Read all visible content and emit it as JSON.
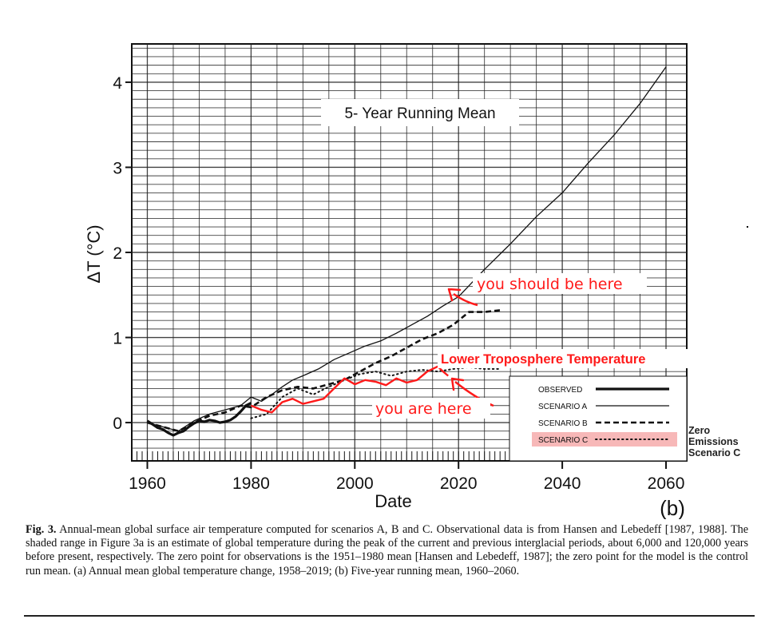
{
  "chart_data": {
    "type": "line",
    "title": "5- Year Running Mean",
    "panel_label": "(b)",
    "xlabel": "Date",
    "ylabel": "ΔT (°C)",
    "xlim": [
      1957,
      2064
    ],
    "ylim": [
      -0.45,
      4.45
    ],
    "x_ticks": [
      1960,
      1980,
      2000,
      2020,
      2040,
      2060
    ],
    "y_ticks": [
      0,
      1,
      2,
      3,
      4
    ],
    "grid": true,
    "legend_position": "lower-right",
    "series": [
      {
        "name": "OBSERVED",
        "style": "thick-solid",
        "x": [
          1960,
          1961,
          1962,
          1963,
          1964,
          1965,
          1966,
          1967,
          1968,
          1969,
          1970,
          1971,
          1972,
          1973,
          1974,
          1975,
          1976,
          1977,
          1978,
          1979,
          1980
        ],
        "y": [
          0.02,
          -0.02,
          -0.06,
          -0.08,
          -0.12,
          -0.15,
          -0.12,
          -0.1,
          -0.05,
          -0.01,
          0.02,
          0.01,
          0.03,
          0.02,
          0.0,
          0.01,
          0.03,
          0.07,
          0.13,
          0.2,
          0.23
        ]
      },
      {
        "name": "SCENARIO A",
        "style": "thin-solid",
        "x": [
          1960,
          1963,
          1966,
          1969,
          1972,
          1975,
          1978,
          1980,
          1982,
          1984,
          1986,
          1988,
          1990,
          1993,
          1996,
          1999,
          2002,
          2005,
          2008,
          2011,
          2014,
          2017,
          2020,
          2025,
          2030,
          2035,
          2040,
          2045,
          2050,
          2055,
          2060
        ],
        "y": [
          0.0,
          -0.05,
          -0.1,
          0.02,
          0.1,
          0.15,
          0.2,
          0.3,
          0.25,
          0.33,
          0.42,
          0.5,
          0.55,
          0.63,
          0.74,
          0.82,
          0.9,
          0.96,
          1.05,
          1.15,
          1.25,
          1.37,
          1.48,
          1.8,
          2.1,
          2.42,
          2.7,
          3.05,
          3.38,
          3.75,
          4.18
        ]
      },
      {
        "name": "SCENARIO B",
        "style": "dashed",
        "x": [
          1960,
          1963,
          1966,
          1969,
          1972,
          1975,
          1978,
          1980,
          1983,
          1986,
          1989,
          1992,
          1995,
          1998,
          2001,
          2004,
          2007,
          2010,
          2013,
          2016,
          2019,
          2022,
          2025,
          2028
        ],
        "y": [
          0.0,
          -0.05,
          -0.1,
          0.0,
          0.08,
          0.12,
          0.2,
          0.18,
          0.3,
          0.38,
          0.42,
          0.4,
          0.45,
          0.5,
          0.6,
          0.7,
          0.78,
          0.88,
          0.98,
          1.05,
          1.15,
          1.3,
          1.3,
          1.32
        ]
      },
      {
        "name": "SCENARIO C",
        "style": "dotted",
        "x": [
          1980,
          1983,
          1986,
          1989,
          1992,
          1995,
          1998,
          2001,
          2004,
          2007,
          2010,
          2013,
          2016,
          2019,
          2022,
          2025,
          2028
        ],
        "y": [
          0.05,
          0.1,
          0.3,
          0.4,
          0.33,
          0.42,
          0.5,
          0.57,
          0.6,
          0.55,
          0.6,
          0.62,
          0.6,
          0.63,
          0.65,
          0.63,
          0.63
        ]
      },
      {
        "name": "Lower Troposphere Temperature",
        "style": "red-overlay",
        "color": "#ff1a1a",
        "x": [
          1980,
          1982,
          1984,
          1986,
          1988,
          1990,
          1992,
          1994,
          1996,
          1998,
          2000,
          2002,
          2004,
          2006,
          2008,
          2010,
          2012,
          2014,
          2016,
          2017,
          2018
        ],
        "y": [
          0.2,
          0.15,
          0.12,
          0.24,
          0.28,
          0.22,
          0.25,
          0.28,
          0.4,
          0.52,
          0.45,
          0.5,
          0.48,
          0.44,
          0.52,
          0.47,
          0.5,
          0.6,
          0.66,
          0.6,
          0.55
        ]
      }
    ],
    "annotations": [
      {
        "text": "you should be here",
        "color": "#ff1a1a"
      },
      {
        "text": "you are here",
        "color": "#ff1a1a"
      },
      {
        "text": "Lower Troposphere Temperature",
        "color": "#ff1a1a"
      }
    ],
    "side_note_lines": [
      "Zero",
      "Emissions",
      "Scenario C"
    ],
    "highlight_color": "#f7b8b8"
  },
  "caption": {
    "fig_label": "Fig. 3.",
    "text": "Annual-mean global surface air temperature computed for scenarios A, B and C. Observational data is from Hansen and Lebedeff [1987, 1988]. The shaded range in Figure 3a is an estimate of global temperature during the peak of the current and previous interglacial periods, about 6,000 and 120,000 years before present, respectively. The zero point for observations is the 1951–1980 mean [Hansen and Lebedeff, 1987]; the zero point for the model is the control run mean. (a) Annual mean global temperature change, 1958–2019; (b) Five-year running mean, 1960–2060."
  }
}
